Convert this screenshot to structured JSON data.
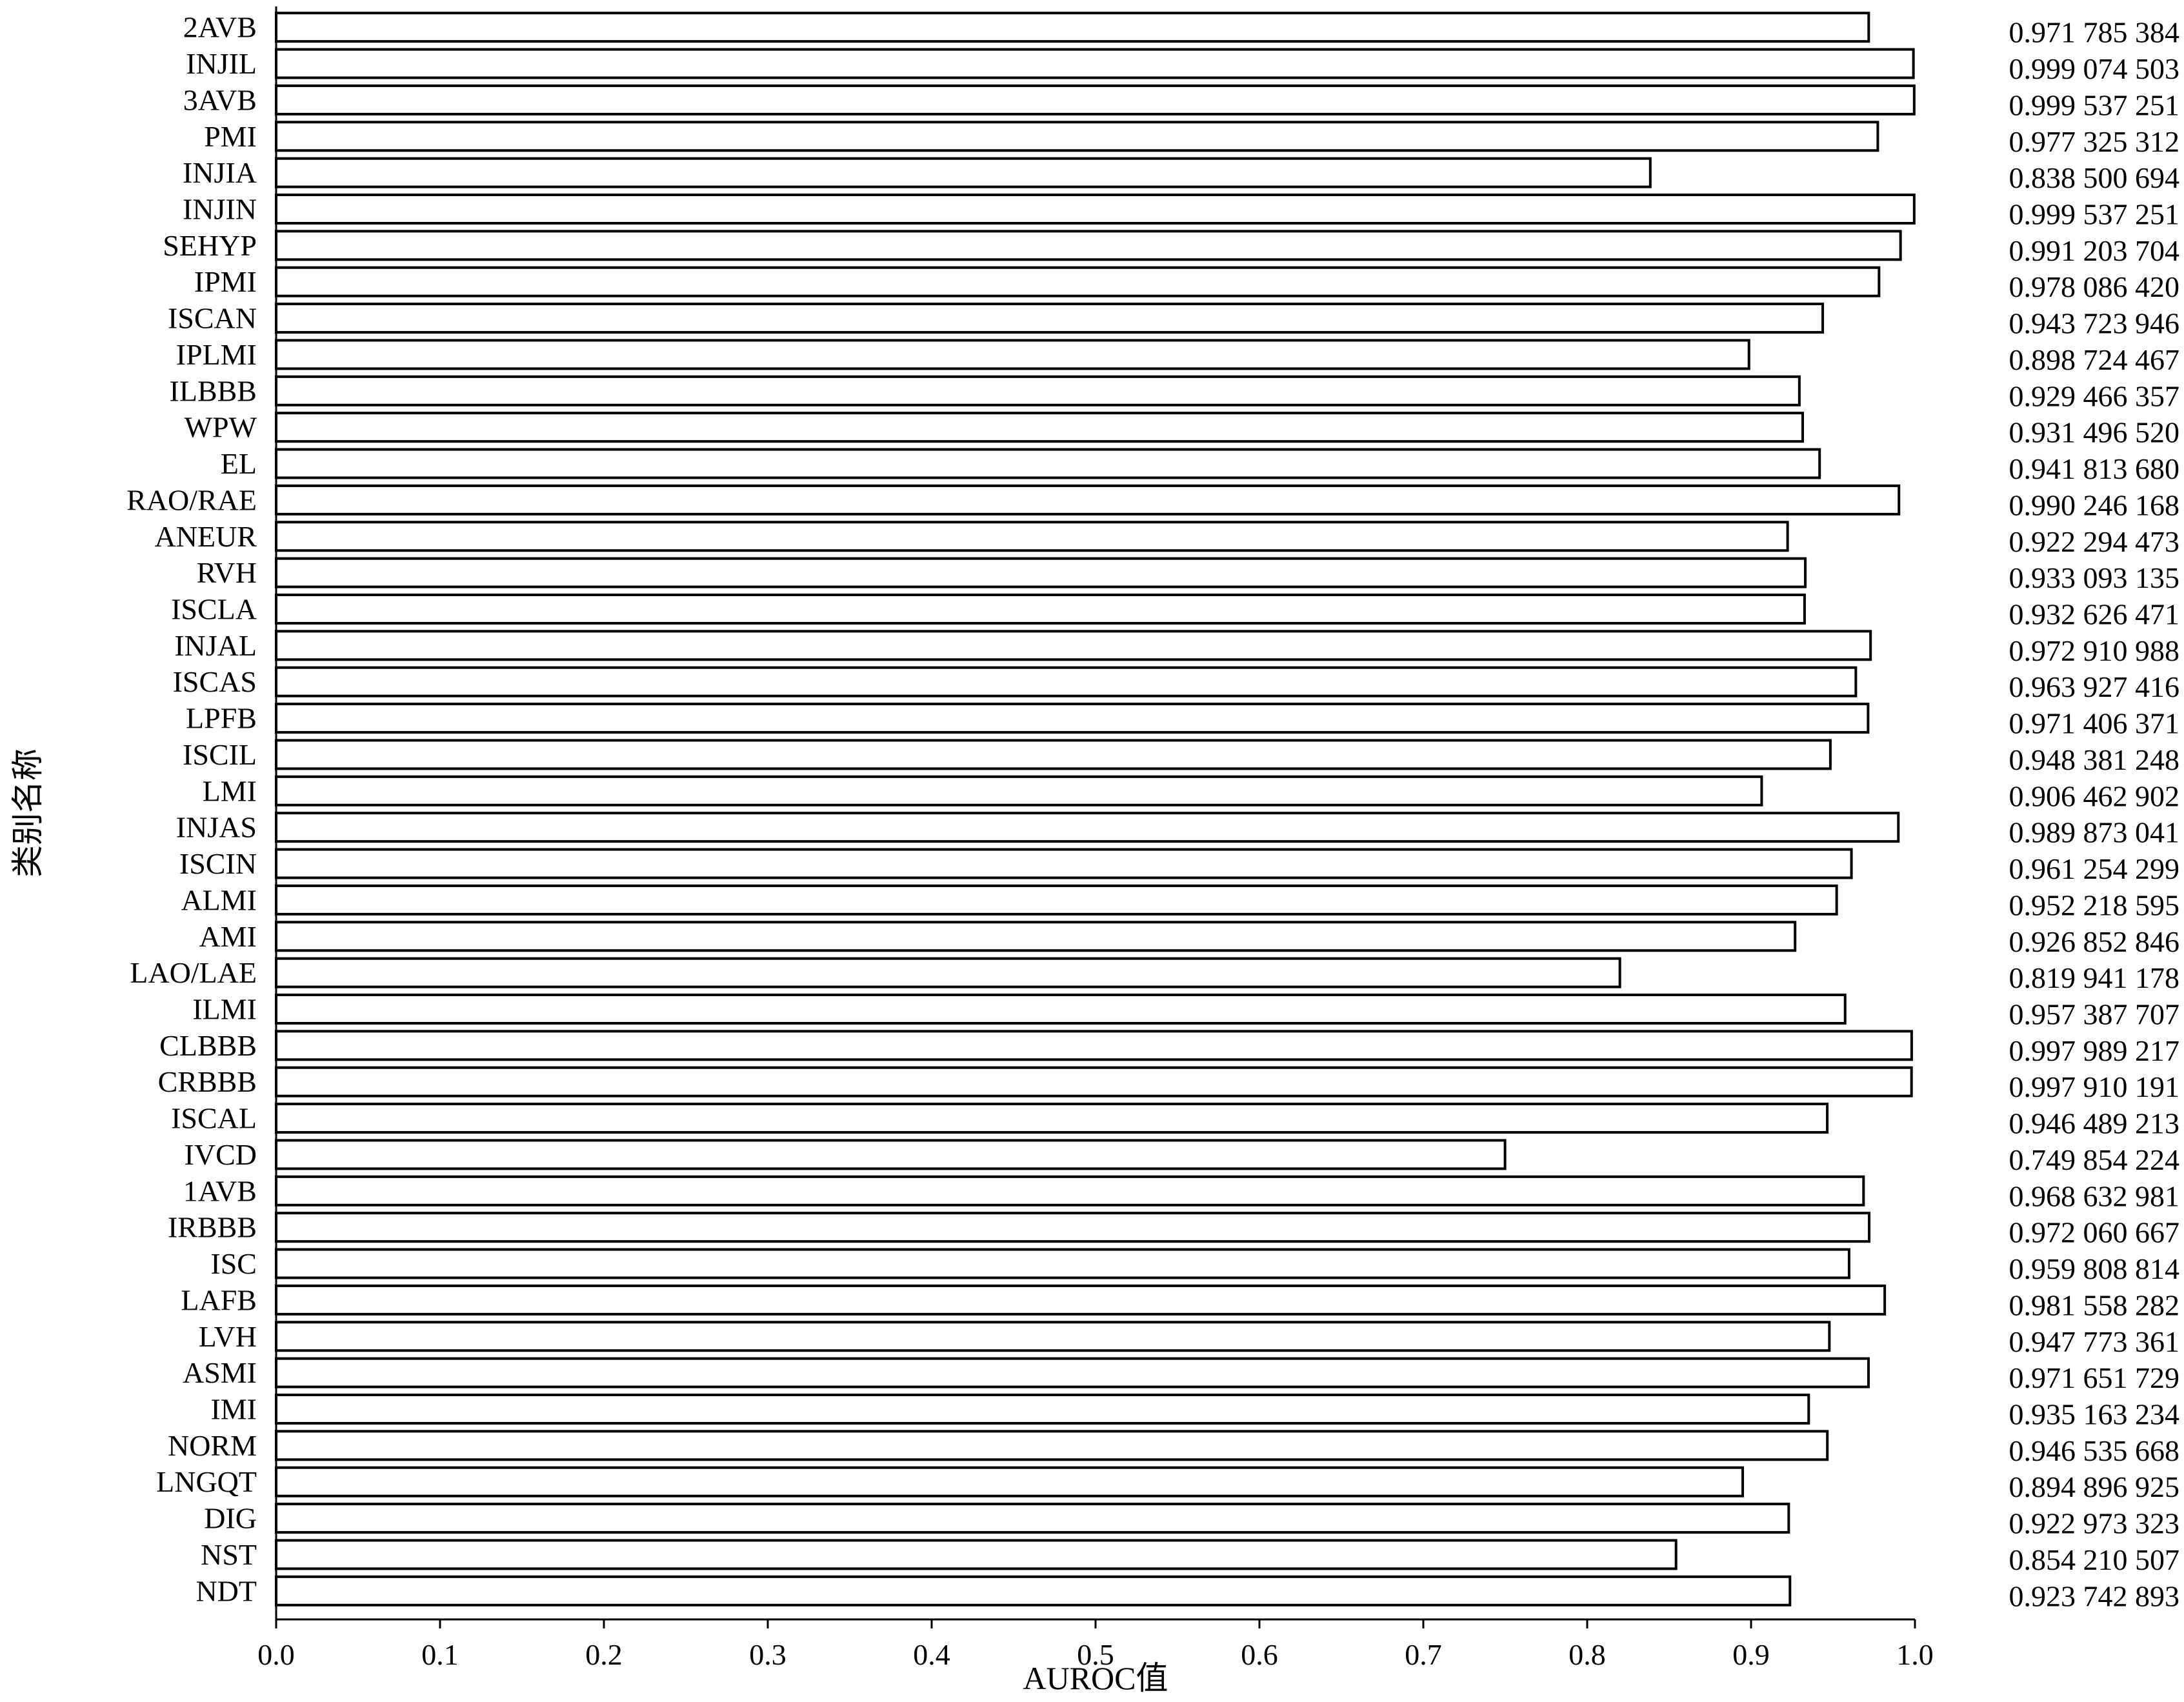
{
  "chart_data": {
    "type": "bar",
    "orientation": "horizontal",
    "xlabel": "AUROC值",
    "ylabel": "类别名称",
    "xlim": [
      0.0,
      1.0
    ],
    "xticks": [
      "0.0",
      "0.1",
      "0.2",
      "0.3",
      "0.4",
      "0.5",
      "0.6",
      "0.7",
      "0.8",
      "0.9",
      "1.0"
    ],
    "grid": false,
    "legend": "none",
    "bar_fill": "#ffffff",
    "bar_stroke": "#000000",
    "categories": [
      "2AVB",
      "INJIL",
      "3AVB",
      "PMI",
      "INJIA",
      "INJIN",
      "SEHYP",
      "IPMI",
      "ISCAN",
      "IPLMI",
      "ILBBB",
      "WPW",
      "EL",
      "RAO/RAE",
      "ANEUR",
      "RVH",
      "ISCLA",
      "INJAL",
      "ISCAS",
      "LPFB",
      "ISCIL",
      "LMI",
      "INJAS",
      "ISCIN",
      "ALMI",
      "AMI",
      "LAO/LAE",
      "ILMI",
      "CLBBB",
      "CRBBB",
      "ISCAL",
      "IVCD",
      "1AVB",
      "IRBBB",
      "ISC",
      "LAFB",
      "LVH",
      "ASMI",
      "IMI",
      "NORM",
      "LNGQT",
      "DIG",
      "NST",
      "NDT"
    ],
    "values": [
      0.971785384,
      0.999074503,
      0.999537251,
      0.977325312,
      0.838500694,
      0.999537251,
      0.991203704,
      0.97808642,
      0.943723946,
      0.898724467,
      0.929466357,
      0.93149652,
      0.94181368,
      0.990246168,
      0.922294473,
      0.933093135,
      0.932626471,
      0.972910988,
      0.963927416,
      0.971406371,
      0.948381248,
      0.906462902,
      0.989873041,
      0.961254299,
      0.952218595,
      0.926852846,
      0.819941178,
      0.957387707,
      0.997989217,
      0.997910191,
      0.946489213,
      0.749854224,
      0.968632981,
      0.972060667,
      0.959808814,
      0.981558282,
      0.947773361,
      0.971651729,
      0.935163234,
      0.946535668,
      0.894896925,
      0.922973323,
      0.854210507,
      0.923742893
    ],
    "value_labels": [
      "0.971 785 384",
      "0.999 074 503",
      "0.999 537 251",
      "0.977 325 312",
      "0.838 500 694",
      "0.999 537 251",
      "0.991 203 704",
      "0.978 086 420",
      "0.943 723 946",
      "0.898 724 467",
      "0.929 466 357",
      "0.931 496 520",
      "0.941 813 680",
      "0.990 246 168",
      "0.922 294 473",
      "0.933 093 135",
      "0.932 626 471",
      "0.972 910 988",
      "0.963 927 416",
      "0.971 406 371",
      "0.948 381 248",
      "0.906 462 902",
      "0.989 873 041",
      "0.961 254 299",
      "0.952 218 595",
      "0.926 852 846",
      "0.819 941 178",
      "0.957 387 707",
      "0.997 989 217",
      "0.997 910 191",
      "0.946 489 213",
      "0.749 854 224",
      "0.968 632 981",
      "0.972 060 667",
      "0.959 808 814",
      "0.981 558 282",
      "0.947 773 361",
      "0.971 651 729",
      "0.935 163 234",
      "0.946 535 668",
      "0.894 896 925",
      "0.922 973 323",
      "0.854 210 507",
      "0.923 742 893"
    ]
  }
}
